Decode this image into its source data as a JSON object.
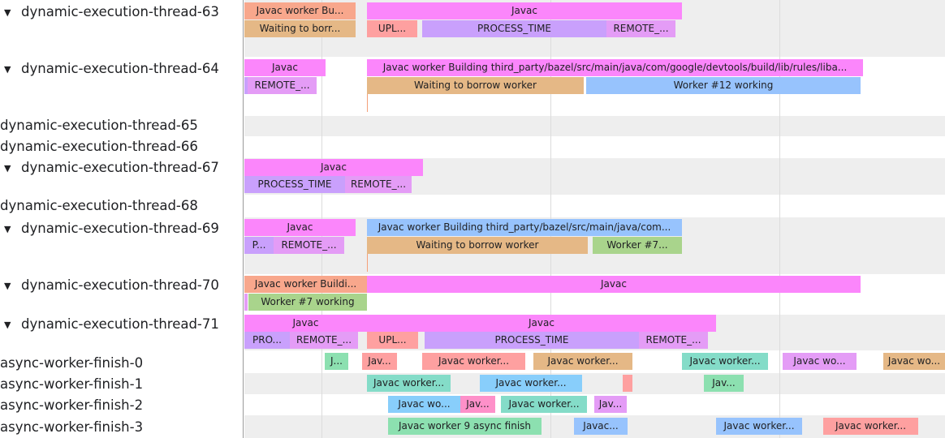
{
  "colors": {
    "pink": "#fb86fb",
    "salmon": "#f8a78c",
    "tan": "#e5b886",
    "red": "#fea0a0",
    "purple": "#c9a0fc",
    "remote": "#e49cf6",
    "blue": "#97c3fd",
    "green": "#a9d48c",
    "teal": "#84dcc8",
    "green2": "#8ce0b0",
    "lightblue": "#88cefb",
    "pink2": "#fe90c9"
  },
  "tracks": [
    {
      "name": "dynamic-execution-thread-63",
      "expanded": true,
      "slices": [
        {
          "text": "Javac worker Bu...",
          "color": "salmon"
        },
        {
          "text": "Javac",
          "color": "pink"
        },
        {
          "text": "Waiting to borr...",
          "color": "tan"
        },
        {
          "text": "UPL...",
          "color": "red"
        },
        {
          "text": "PROCESS_TIME",
          "color": "purple"
        },
        {
          "text": "REMOTE_...",
          "color": "remote"
        }
      ]
    },
    {
      "name": "dynamic-execution-thread-64",
      "expanded": true,
      "slices": [
        {
          "text": "Javac",
          "color": "pink"
        },
        {
          "text": "Javac worker Building third_party/bazel/src/main/java/com/google/devtools/build/lib/rules/liba...",
          "color": "pink"
        },
        {
          "text": "",
          "color": "purple"
        },
        {
          "text": "REMOTE_...",
          "color": "remote"
        },
        {
          "text": "Waiting to borrow worker",
          "color": "tan"
        },
        {
          "text": "Worker #12 working",
          "color": "blue"
        }
      ]
    },
    {
      "name": "dynamic-execution-thread-65",
      "expanded": false,
      "slices": []
    },
    {
      "name": "dynamic-execution-thread-66",
      "expanded": false,
      "slices": []
    },
    {
      "name": "dynamic-execution-thread-67",
      "expanded": true,
      "slices": [
        {
          "text": "Javac",
          "color": "pink"
        },
        {
          "text": "PROCESS_TIME",
          "color": "purple"
        },
        {
          "text": "REMOTE_...",
          "color": "remote"
        }
      ]
    },
    {
      "name": "dynamic-execution-thread-68",
      "expanded": false,
      "slices": []
    },
    {
      "name": "dynamic-execution-thread-69",
      "expanded": true,
      "slices": [
        {
          "text": "Javac",
          "color": "pink"
        },
        {
          "text": "Javac worker Building third_party/bazel/src/main/java/com...",
          "color": "blue"
        },
        {
          "text": "P...",
          "color": "purple"
        },
        {
          "text": "REMOTE_...",
          "color": "remote"
        },
        {
          "text": "Waiting to borrow worker",
          "color": "tan"
        },
        {
          "text": "Worker #7...",
          "color": "green"
        }
      ]
    },
    {
      "name": "dynamic-execution-thread-70",
      "expanded": true,
      "slices": [
        {
          "text": "Javac worker Buildi...",
          "color": "salmon"
        },
        {
          "text": "Javac",
          "color": "pink"
        },
        {
          "text": "",
          "color": "remote"
        },
        {
          "text": "Worker #7 working",
          "color": "green"
        }
      ]
    },
    {
      "name": "dynamic-execution-thread-71",
      "expanded": true,
      "slices": [
        {
          "text": "Javac",
          "color": "pink"
        },
        {
          "text": "Javac",
          "color": "pink"
        },
        {
          "text": "PRO...",
          "color": "purple"
        },
        {
          "text": "REMOTE_...",
          "color": "remote"
        },
        {
          "text": "UPL...",
          "color": "red"
        },
        {
          "text": "PROCESS_TIME",
          "color": "purple"
        },
        {
          "text": "REMOTE_...",
          "color": "remote"
        }
      ]
    },
    {
      "name": "async-worker-finish-0",
      "expanded": false,
      "slices": [
        {
          "text": "J...",
          "color": "green2"
        },
        {
          "text": "Jav...",
          "color": "red"
        },
        {
          "text": "Javac worker...",
          "color": "red"
        },
        {
          "text": "Javac worker...",
          "color": "tan"
        },
        {
          "text": "Javac worker...",
          "color": "teal"
        },
        {
          "text": "Javac wo...",
          "color": "remote"
        },
        {
          "text": "Javac wo...",
          "color": "tan"
        }
      ]
    },
    {
      "name": "async-worker-finish-1",
      "expanded": false,
      "slices": [
        {
          "text": "Javac worker...",
          "color": "teal"
        },
        {
          "text": "Javac worker...",
          "color": "lightblue"
        },
        {
          "text": "",
          "color": "red"
        },
        {
          "text": "Jav...",
          "color": "green2"
        }
      ]
    },
    {
      "name": "async-worker-finish-2",
      "expanded": false,
      "slices": [
        {
          "text": "Javac wo...",
          "color": "lightblue"
        },
        {
          "text": "Jav...",
          "color": "pink2"
        },
        {
          "text": "Javac worker...",
          "color": "teal"
        },
        {
          "text": "Jav...",
          "color": "remote"
        }
      ]
    },
    {
      "name": "async-worker-finish-3",
      "expanded": false,
      "slices": [
        {
          "text": "Javac worker 9 async finish",
          "color": "green2"
        },
        {
          "text": "Javac...",
          "color": "blue"
        },
        {
          "text": "Javac worker...",
          "color": "blue"
        },
        {
          "text": "Javac worker...",
          "color": "red"
        }
      ]
    }
  ]
}
